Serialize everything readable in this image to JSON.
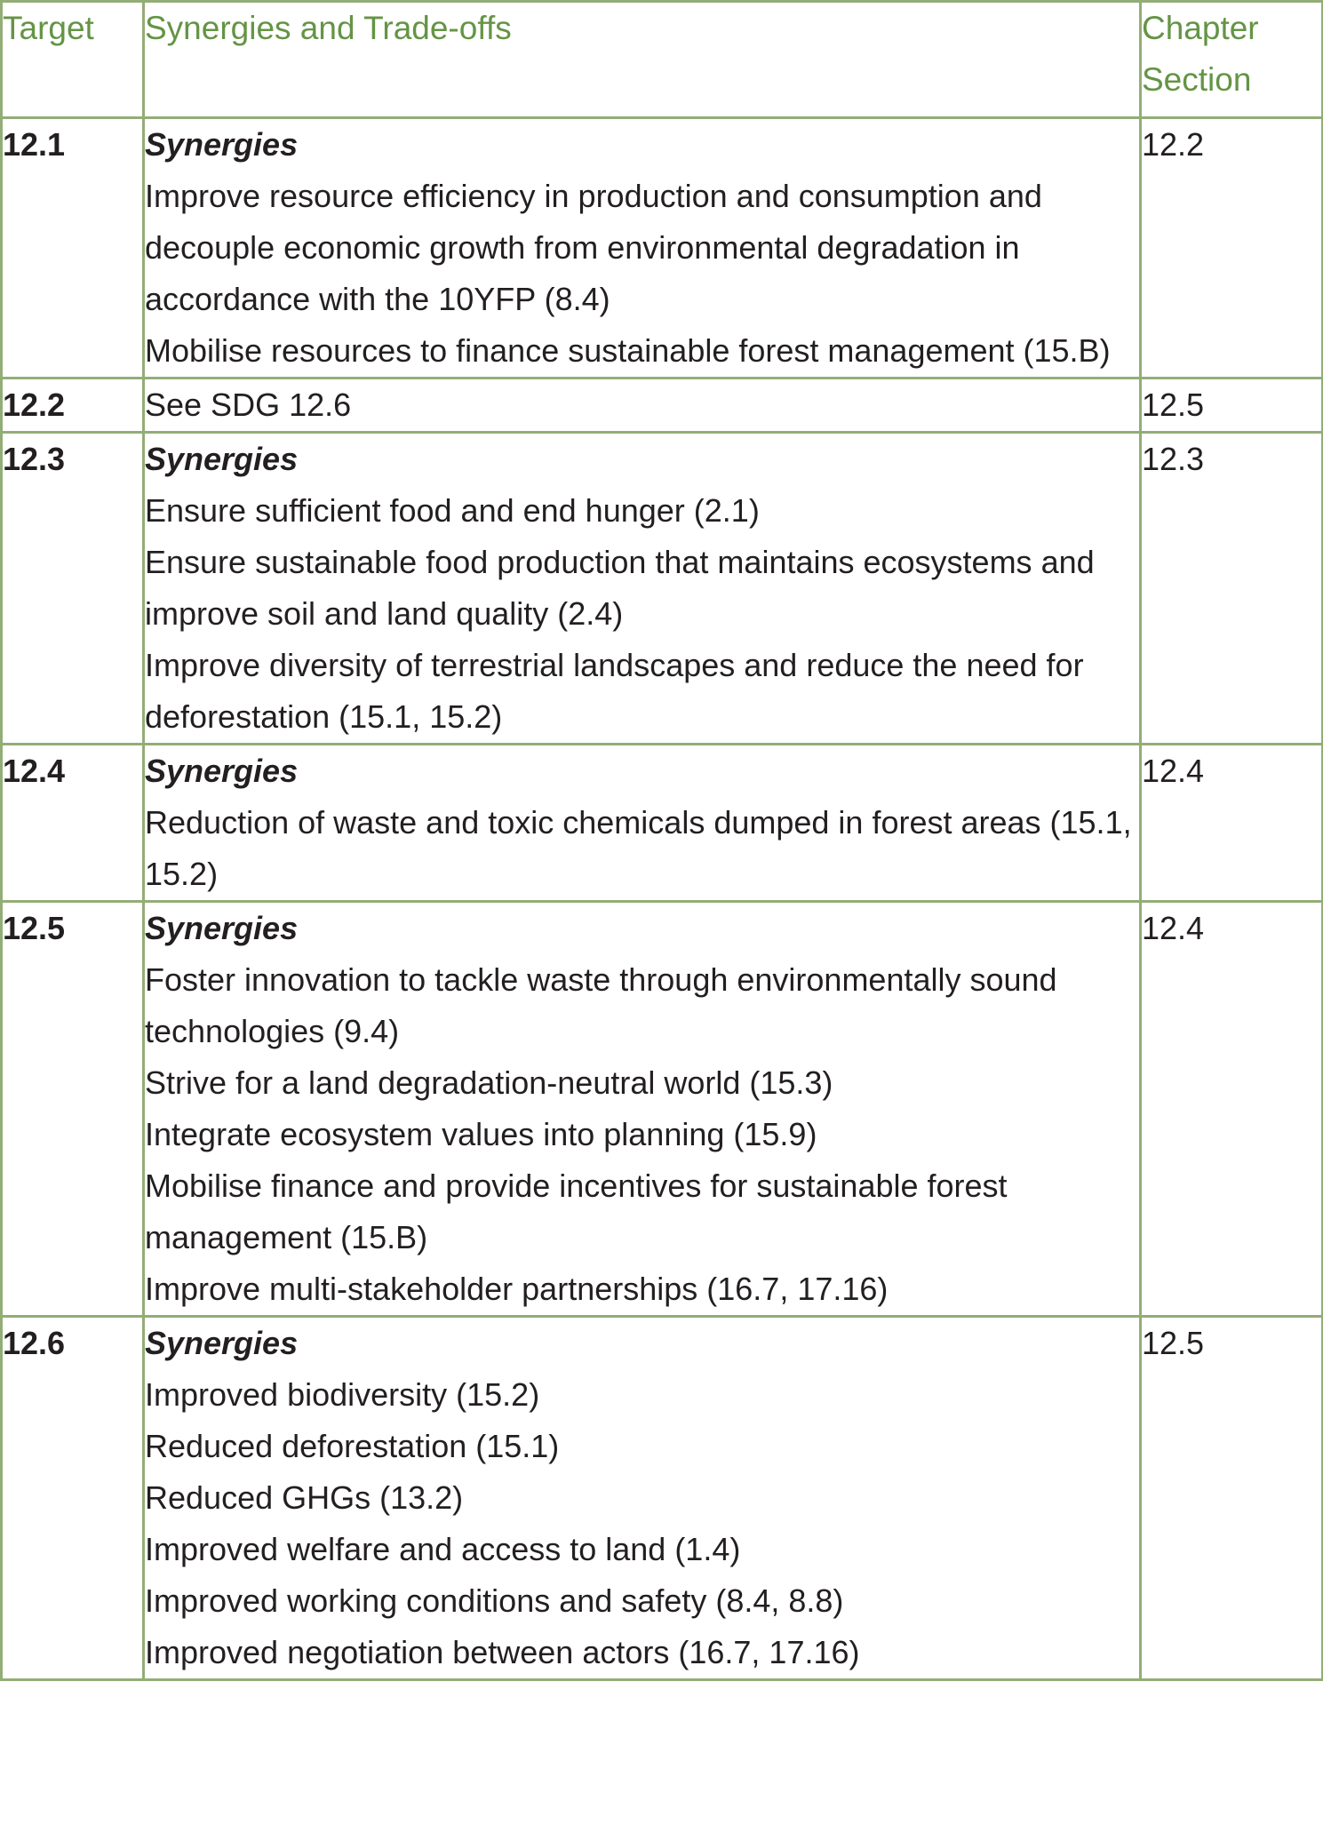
{
  "table": {
    "headers": {
      "target": "Target",
      "synergies": "Synergies and Trade-offs",
      "chapter_section_line1": "Chapter",
      "chapter_section_line2": "Section"
    },
    "rows": [
      {
        "target": "12.1",
        "heading": "Synergies",
        "items": [
          "Improve resource efficiency in production and consumption and decouple economic growth from environmental degradation in accordance with the 10YFP (8.4)",
          "Mobilise resources to finance sustainable forest management (15.B)"
        ],
        "section": "12.2"
      },
      {
        "target": "12.2",
        "heading": "",
        "items": [
          "See SDG 12.6"
        ],
        "section": "12.5"
      },
      {
        "target": "12.3",
        "heading": "Synergies",
        "items": [
          "Ensure sufficient food and end hunger (2.1)",
          "Ensure sustainable food production that maintains ecosystems and improve soil and land quality (2.4)",
          "Improve diversity of terrestrial landscapes and reduce the need for deforestation (15.1, 15.2)"
        ],
        "section": "12.3"
      },
      {
        "target": "12.4",
        "heading": "Synergies",
        "items": [
          "Reduction of waste and toxic chemicals dumped in forest areas (15.1, 15.2)"
        ],
        "section": "12.4"
      },
      {
        "target": "12.5",
        "heading": "Synergies",
        "items": [
          "Foster innovation to tackle waste through environmentally sound technologies (9.4)",
          "Strive for a land degradation-neutral world (15.3)",
          "Integrate ecosystem values into planning (15.9)",
          "Mobilise finance and provide incentives for sustainable forest management (15.B)",
          "Improve multi-stakeholder partnerships (16.7, 17.16)"
        ],
        "section": "12.4"
      },
      {
        "target": "12.6",
        "heading": "Synergies",
        "items": [
          "Improved biodiversity (15.2)",
          "Reduced deforestation (15.1)",
          "Reduced GHGs (13.2)",
          "Improved welfare and access to land (1.4)",
          "Improved working conditions and safety (8.4, 8.8)",
          "Improved negotiation between actors (16.7, 17.16)"
        ],
        "section": "12.5"
      }
    ]
  },
  "colors": {
    "border": "#93ad76",
    "header_text": "#649445",
    "body_text": "#231f20"
  }
}
